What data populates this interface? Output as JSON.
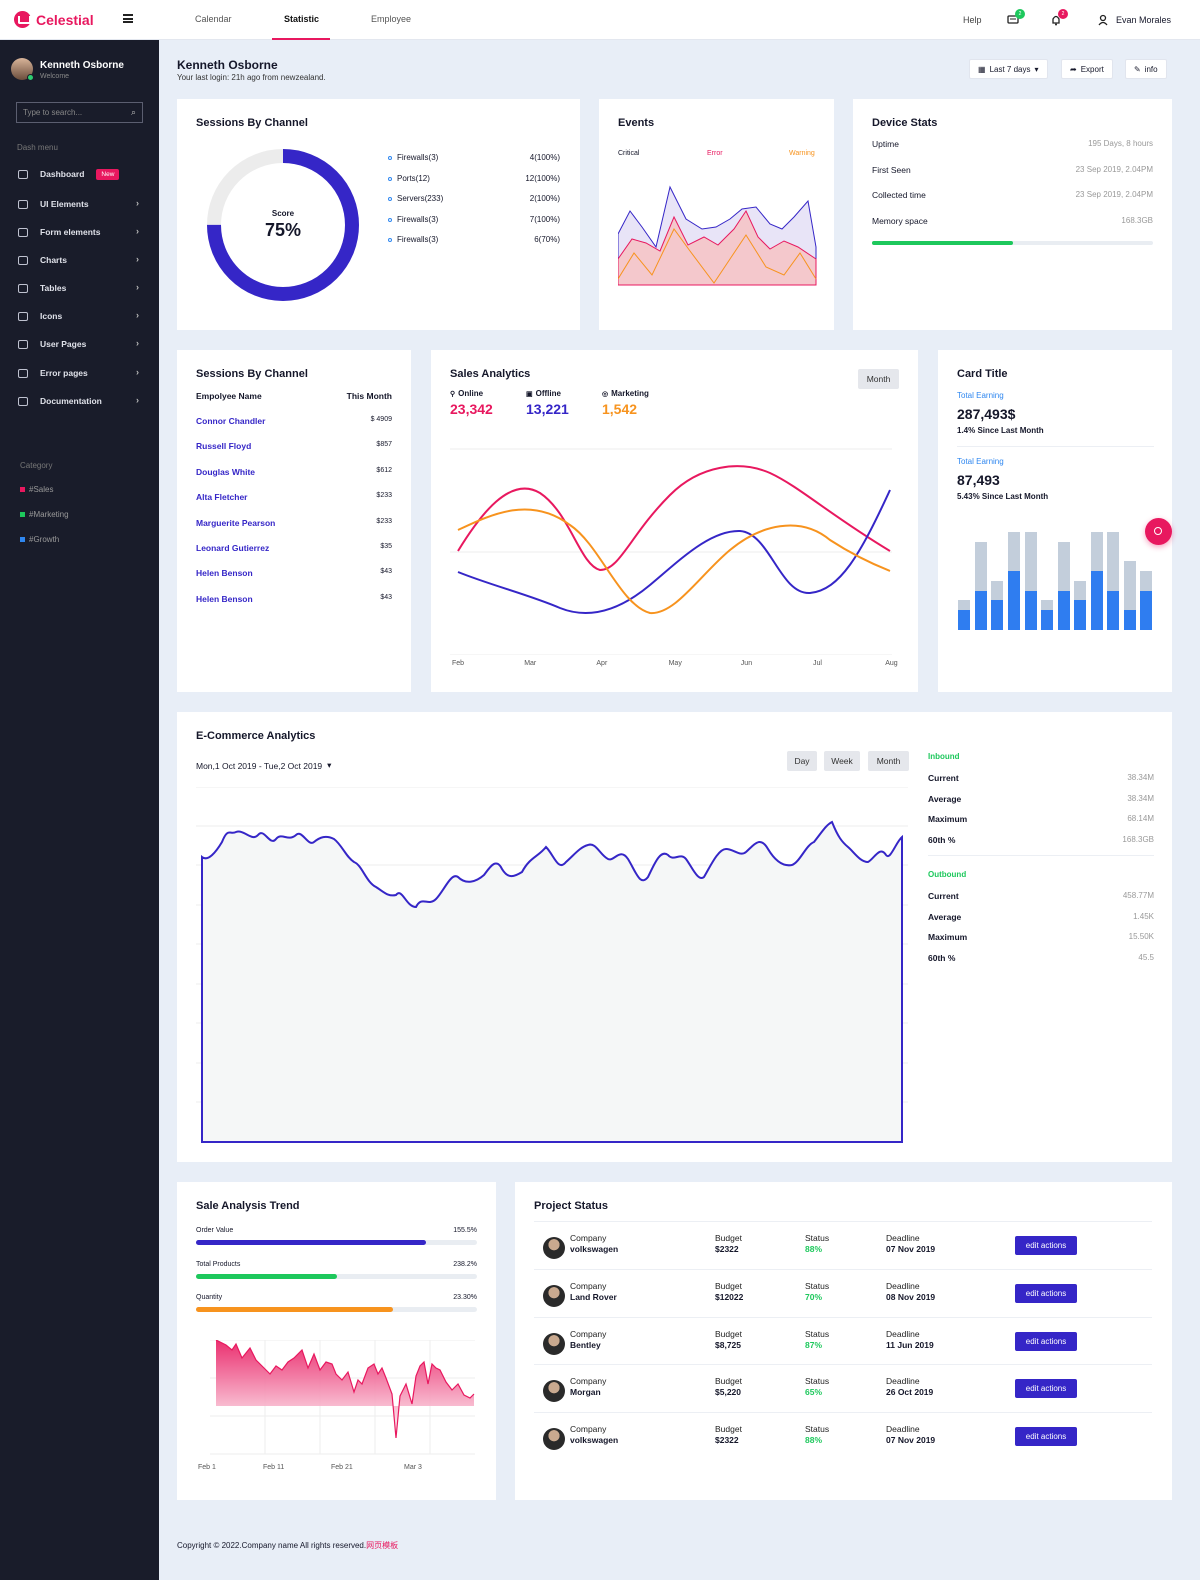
{
  "brand": {
    "name": "Celestial"
  },
  "topnav": {
    "tabs": [
      {
        "label": "Calendar"
      },
      {
        "label": "Statistic"
      },
      {
        "label": "Employee"
      }
    ],
    "help": "Help",
    "messages_count": "2",
    "notifications_count": "2",
    "user": "Evan Morales"
  },
  "sidebar": {
    "profile": {
      "name": "Kenneth Osborne",
      "sub": "Welcome"
    },
    "search_placeholder": "Type to search...",
    "section": "Dash menu",
    "items": [
      {
        "label": "Dashboard",
        "badge": "New",
        "icon": "monitor-icon"
      },
      {
        "label": "UI Elements",
        "icon": "briefcase-icon"
      },
      {
        "label": "Form elements",
        "icon": "form-icon"
      },
      {
        "label": "Charts",
        "icon": "pie-chart-icon"
      },
      {
        "label": "Tables",
        "icon": "grid-icon"
      },
      {
        "label": "Icons",
        "icon": "compass-icon"
      },
      {
        "label": "User Pages",
        "icon": "user-plus-icon"
      },
      {
        "label": "Error pages",
        "icon": "bug-icon"
      },
      {
        "label": "Documentation",
        "icon": "document-icon"
      }
    ],
    "category_title": "Category",
    "categories": [
      {
        "label": "#Sales",
        "color": "#e8185f"
      },
      {
        "label": "#Marketing",
        "color": "#1dc85c"
      },
      {
        "label": "#Growth",
        "color": "#2f87f0"
      }
    ]
  },
  "header": {
    "title": "Kenneth Osborne",
    "subtitle": "Your last login: 21h ago from newzealand.",
    "range": "Last 7 days",
    "export": "Export",
    "info": "info"
  },
  "sessions": {
    "title": "Sessions By Channel",
    "score_label": "Score",
    "score_value": "75%",
    "score": 0.75,
    "channels": [
      {
        "name": "Firewalls(3)",
        "value": "4(100%)"
      },
      {
        "name": "Ports(12)",
        "value": "12(100%)"
      },
      {
        "name": "Servers(233)",
        "value": "2(100%)"
      },
      {
        "name": "Firewalls(3)",
        "value": "7(100%)"
      },
      {
        "name": "Firewalls(3)",
        "value": "6(70%)"
      }
    ]
  },
  "events": {
    "title": "Events",
    "legend": [
      {
        "label": "Critical",
        "color": "#15172a"
      },
      {
        "label": "Error",
        "color": "#e8185f"
      },
      {
        "label": "Warning",
        "color": "#f7931e"
      }
    ]
  },
  "device": {
    "title": "Device Stats",
    "rows": [
      {
        "k": "Uptime",
        "v": "195 Days, 8 hours"
      },
      {
        "k": "First Seen",
        "v": "23 Sep 2019, 2.04PM"
      },
      {
        "k": "Collected time",
        "v": "23 Sep 2019, 2.04PM"
      },
      {
        "k": "Memory space",
        "v": "168.3GB"
      }
    ],
    "memory_fill": 0.5
  },
  "employees": {
    "title": "Sessions By Channel",
    "col1": "Empolyee Name",
    "col2": "This Month",
    "rows": [
      {
        "n": "Connor Chandler",
        "a": "$ 4909"
      },
      {
        "n": "Russell Floyd",
        "a": "$857"
      },
      {
        "n": "Douglas White",
        "a": "$612"
      },
      {
        "n": "Alta Fletcher",
        "a": "$233"
      },
      {
        "n": "Marguerite Pearson",
        "a": "$233"
      },
      {
        "n": "Leonard Gutierrez",
        "a": "$35"
      },
      {
        "n": "Helen Benson",
        "a": "$43"
      },
      {
        "n": "Helen Benson",
        "a": "$43"
      }
    ]
  },
  "sales": {
    "title": "Sales Analytics",
    "button": "Month",
    "stats": [
      {
        "label": "Online",
        "value": "23,342",
        "color": "#e8185f"
      },
      {
        "label": "Offline",
        "value": "13,221",
        "color": "#3526c7"
      },
      {
        "label": "Marketing",
        "value": "1,542",
        "color": "#f7931e"
      }
    ],
    "x": [
      "Feb",
      "Mar",
      "Apr",
      "May",
      "Jun",
      "Jul",
      "Aug"
    ]
  },
  "cardtitle": {
    "title": "Card Title",
    "e1_label": "Total Earning",
    "e1_value": "287,493$",
    "e1_sub": "1.4% Since Last Month",
    "e2_label": "Total Earning",
    "e2_value": "87,493",
    "e2_sub": "5.43% Since Last Month"
  },
  "ecom": {
    "title": "E-Commerce Analytics",
    "date_range": "Mon,1 Oct 2019 - Tue,2 Oct 2019",
    "buttons": [
      "Day",
      "Week",
      "Month"
    ],
    "inbound_title": "Inbound",
    "inbound": [
      {
        "k": "Current",
        "v": "38.34M"
      },
      {
        "k": "Average",
        "v": "38.34M"
      },
      {
        "k": "Maximum",
        "v": "68.14M"
      },
      {
        "k": "60th %",
        "v": "168.3GB"
      }
    ],
    "outbound_title": "Outbound",
    "outbound": [
      {
        "k": "Current",
        "v": "458.77M"
      },
      {
        "k": "Average",
        "v": "1.45K"
      },
      {
        "k": "Maximum",
        "v": "15.50K"
      },
      {
        "k": "60th %",
        "v": "45.5"
      }
    ]
  },
  "trend": {
    "title": "Sale Analysis Trend",
    "bars": [
      {
        "label": "Order Value",
        "value": "155.5%",
        "fill": 0.82,
        "color": "#3526c7"
      },
      {
        "label": "Total Products",
        "value": "238.2%",
        "fill": 0.5,
        "color": "#1dc85c"
      },
      {
        "label": "Quantity",
        "value": "23.30%",
        "fill": 0.7,
        "color": "#f7931e"
      }
    ],
    "x": [
      "Feb 1",
      "Feb 11",
      "Feb 21",
      "Mar 3"
    ]
  },
  "projects": {
    "title": "Project Status",
    "company_label": "Company",
    "budget_label": "Budget",
    "status_label": "Status",
    "deadline_label": "Deadline",
    "button": "edit actions",
    "rows": [
      {
        "company": "volkswagen",
        "budget": "$2322",
        "status": "88%",
        "deadline": "07 Nov 2019"
      },
      {
        "company": "Land Rover",
        "budget": "$12022",
        "status": "70%",
        "deadline": "08 Nov 2019"
      },
      {
        "company": "Bentley",
        "budget": "$8,725",
        "status": "87%",
        "deadline": "11 Jun 2019"
      },
      {
        "company": "Morgan",
        "budget": "$5,220",
        "status": "65%",
        "deadline": "26 Oct 2019"
      },
      {
        "company": "volkswagen",
        "budget": "$2322",
        "status": "88%",
        "deadline": "07 Nov 2019"
      }
    ]
  },
  "footer": {
    "text": "Copyright © 2022.Company name All rights reserved.",
    "link": "网页模板"
  }
}
